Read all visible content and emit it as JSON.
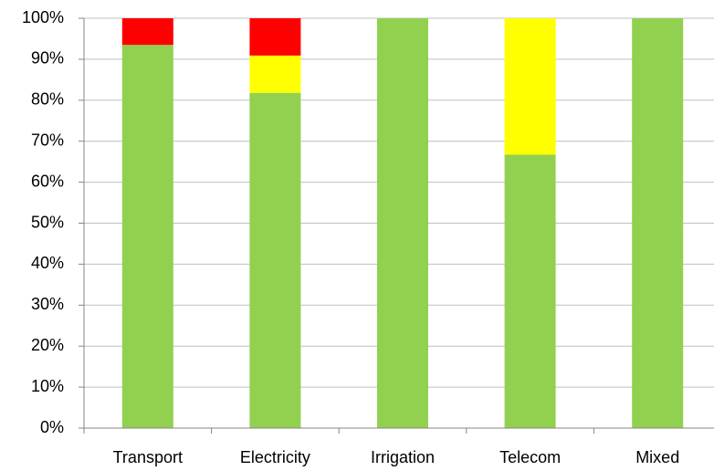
{
  "chart_data": {
    "type": "stacked_bar",
    "categories": [
      "Transport",
      "Electricity",
      "Irrigation",
      "Telecom",
      "Mixed"
    ],
    "series": [
      {
        "color": "#92d050",
        "values": [
          93.5,
          81.8,
          100,
          66.7,
          100
        ]
      },
      {
        "color": "#ffff00",
        "values": [
          0,
          9.1,
          0,
          33.3,
          0
        ]
      },
      {
        "color": "#ff0000",
        "values": [
          6.5,
          9.1,
          0,
          0,
          0
        ]
      }
    ],
    "ylim": [
      0,
      100
    ],
    "yticks": [
      {
        "value": 0,
        "label": "0%"
      },
      {
        "value": 10,
        "label": "10%"
      },
      {
        "value": 20,
        "label": "20%"
      },
      {
        "value": 30,
        "label": "30%"
      },
      {
        "value": 40,
        "label": "40%"
      },
      {
        "value": 50,
        "label": "50%"
      },
      {
        "value": 60,
        "label": "60%"
      },
      {
        "value": 70,
        "label": "70%"
      },
      {
        "value": 80,
        "label": "80%"
      },
      {
        "value": 90,
        "label": "90%"
      },
      {
        "value": 100,
        "label": "100%"
      }
    ],
    "grid": true
  }
}
